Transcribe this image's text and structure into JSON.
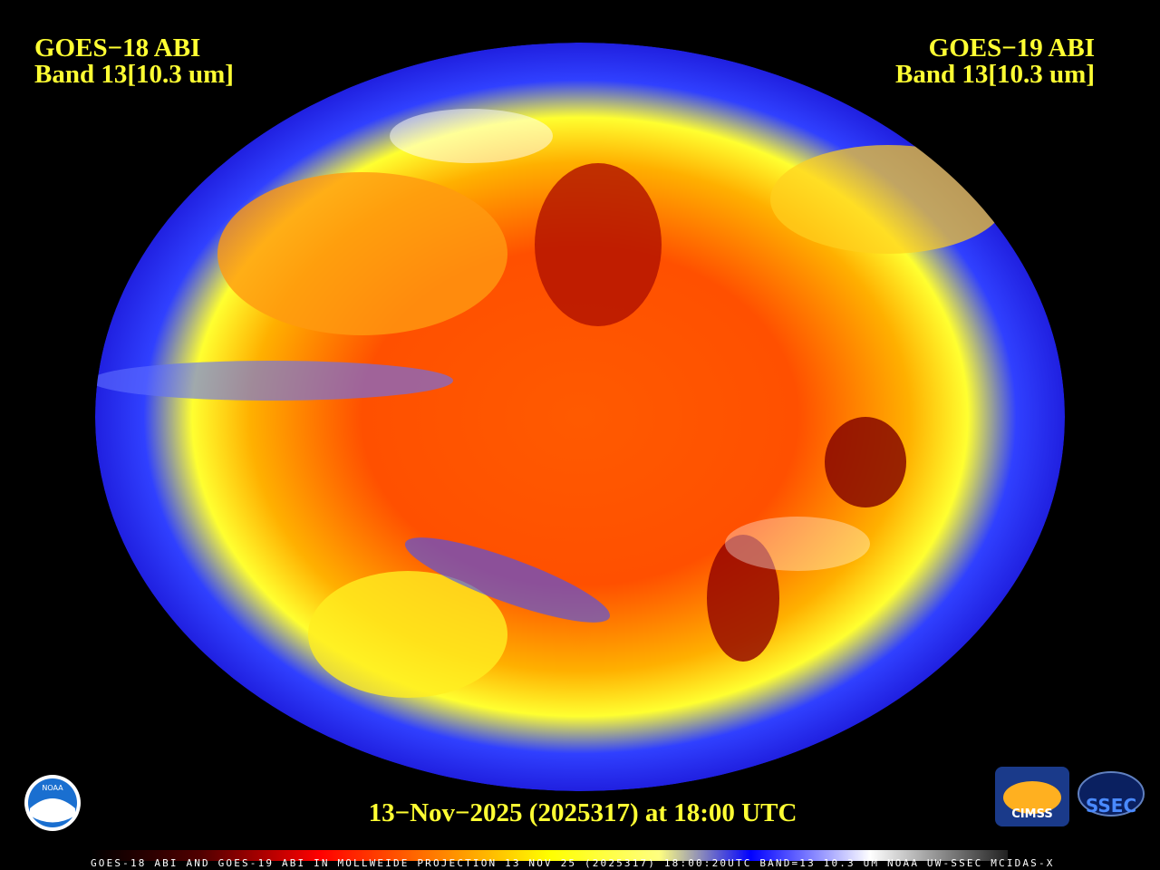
{
  "header_left": {
    "line1": "GOES−18 ABI",
    "line2": "Band 13[10.3 um]"
  },
  "header_right": {
    "line1": "GOES−19 ABI",
    "line2": "Band 13[10.3 um]"
  },
  "timestamp": "13−Nov−2025 (2025317) at 18:00 UTC",
  "footer": "GOES-18 ABI AND GOES-19 ABI IN MOLLWEIDE PROJECTION 13 NOV 25 (2025317) 18:00:20UTC BAND=13 10.3 UM NOAA UW-SSEC MCIDAS-X",
  "logos": {
    "noaa": "NOAA",
    "cimss": "CIMSS",
    "ssec": "SSEC"
  }
}
